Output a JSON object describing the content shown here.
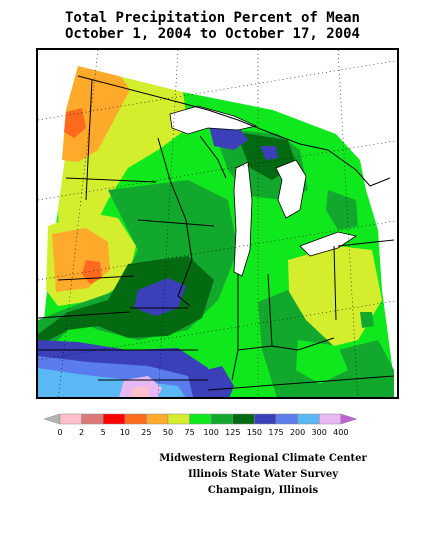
{
  "title": {
    "line1": "Total Precipitation Percent of Mean",
    "line2": "October 1, 2004 to October 17, 2004"
  },
  "legend": {
    "labels": [
      "0",
      "2",
      "5",
      "10",
      "25",
      "50",
      "75",
      "100",
      "125",
      "150",
      "175",
      "200",
      "300",
      "400"
    ],
    "colors": [
      "#b4b4b4",
      "#ffc0cb",
      "#dc7a7a",
      "#ff0000",
      "#ff6a1e",
      "#ffaa2a",
      "#d4ee2e",
      "#10e81e",
      "#12a82e",
      "#046a12",
      "#3b40b8",
      "#5a7cec",
      "#5ab8f4",
      "#e8b8f4",
      "#c060d8"
    ]
  },
  "credits": {
    "line1": "Midwestern Regional Climate Center",
    "line2": "Illinois State Water Survey",
    "line3": "Champaign, Illinois"
  },
  "map": {
    "region": "Upper Midwest / Great Lakes",
    "lake_color": "#ffffff",
    "boundary_color": "#000000"
  }
}
